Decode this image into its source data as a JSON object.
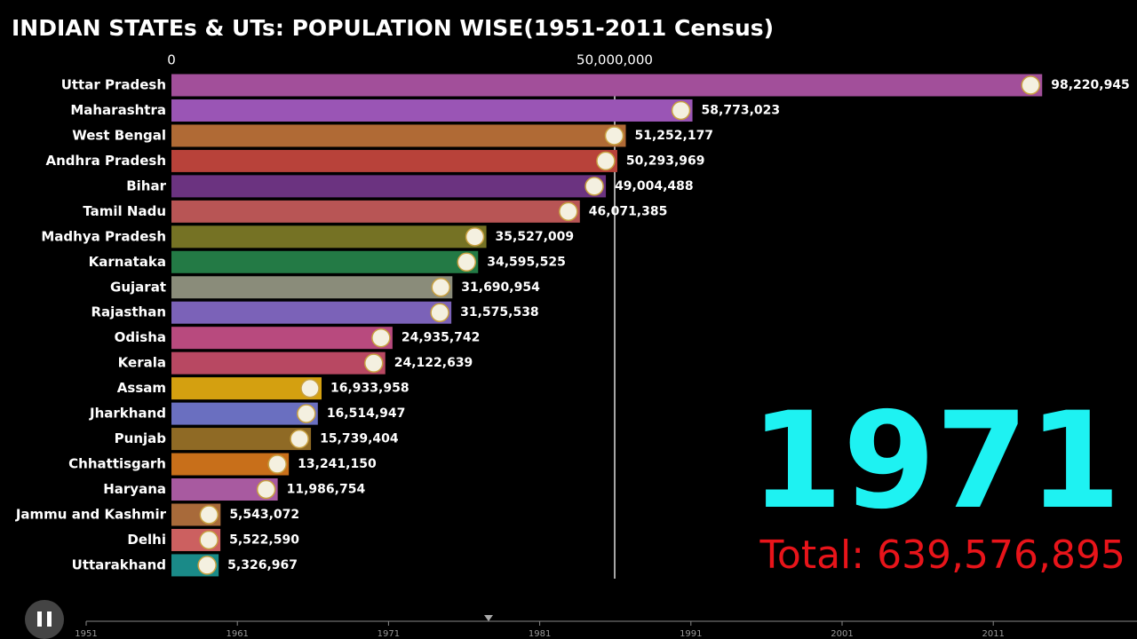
{
  "chart_data": {
    "type": "bar",
    "orientation": "horizontal",
    "title": "INDIAN STATEs & UTs: POPULATION WISE(1951-2011 Census)",
    "categories": [
      "Uttar Pradesh",
      "Maharashtra",
      "West Bengal",
      "Andhra Pradesh",
      "Bihar",
      "Tamil Nadu",
      "Madhya Pradesh",
      "Karnataka",
      "Gujarat",
      "Rajasthan",
      "Odisha",
      "Kerala",
      "Assam",
      "Jharkhand",
      "Punjab",
      "Chhattisgarh",
      "Haryana",
      "Jammu and Kashmir",
      "Delhi",
      "Uttarakhand"
    ],
    "values": [
      98220945,
      58773023,
      51252177,
      50293969,
      49004488,
      46071385,
      35527009,
      34595525,
      31690954,
      31575538,
      24935742,
      24122639,
      16933958,
      16514947,
      15739404,
      13241150,
      11986754,
      5543072,
      5522590,
      5326967
    ],
    "value_labels": [
      "98,220,945",
      "58,773,023",
      "51,252,177",
      "50,293,969",
      "49,004,488",
      "46,071,385",
      "35,527,009",
      "34,595,525",
      "31,690,954",
      "31,575,538",
      "24,935,742",
      "24,122,639",
      "16,933,958",
      "16,514,947",
      "15,739,404",
      "13,241,150",
      "11,986,754",
      "5,543,072",
      "5,522,590",
      "5,326,967"
    ],
    "colors": [
      "#a24f9a",
      "#9a55b5",
      "#b06a35",
      "#b8423a",
      "#6b3380",
      "#b85555",
      "#757224",
      "#237a45",
      "#8a8c7a",
      "#7b62b8",
      "#b84a7e",
      "#b84862",
      "#d4a010",
      "#6a6fc0",
      "#8f6a25",
      "#c86f1a",
      "#a85aa0",
      "#a86a3a",
      "#cc6060",
      "#1a8a88"
    ],
    "xlim": [
      0,
      100000000
    ],
    "xticks": [
      0,
      {
        "value": 50000000,
        "label": "50,000,000"
      }
    ],
    "grid": true,
    "year_label": "1971",
    "total_label": "Total: 639,576,895"
  },
  "timeline": {
    "ticks": [
      1951,
      1961,
      1971,
      1981,
      1991,
      2001,
      2011
    ]
  }
}
